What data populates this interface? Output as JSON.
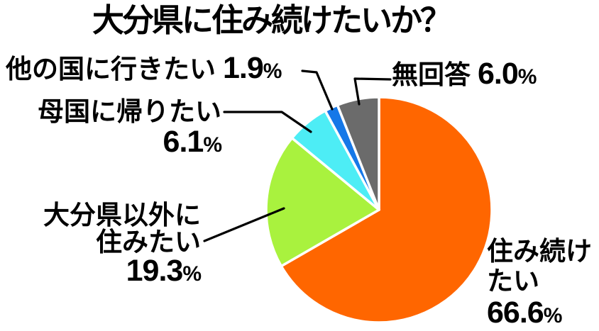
{
  "title": "大分県に住み続けたいか？",
  "background": "#FFFFFF",
  "text_color": "#000000",
  "chart_data": {
    "type": "pie",
    "title": "大分県に住み続けたいか？",
    "start_angle_deg": 0,
    "direction": "clockwise",
    "legend_position": "none",
    "separator_color": "#FFFFFF",
    "segments": [
      {
        "key": "stay",
        "label": "住み続けたい",
        "value": 66.6,
        "display": "66.6%",
        "color": "#FF6600"
      },
      {
        "key": "outside-oita",
        "label": "大分県以外に住みたい",
        "value": 19.3,
        "display": "19.3%",
        "color": "#A9F23E"
      },
      {
        "key": "homeland",
        "label": "母国に帰りたい",
        "value": 6.1,
        "display": "6.1%",
        "color": "#4DEDF5"
      },
      {
        "key": "other-country",
        "label": "他の国に行きたい",
        "value": 1.9,
        "display": "1.9%",
        "color": "#1578E8"
      },
      {
        "key": "no-answer",
        "label": "無回答",
        "value": 6.0,
        "display": "6.0%",
        "color": "#6B6B6B"
      }
    ]
  },
  "labels": {
    "other_country": {
      "text": "他の国に行きたい",
      "value": "1.9",
      "unit": "%"
    },
    "no_answer": {
      "text": "無回答",
      "value": "6.0",
      "unit": "%"
    },
    "homeland": {
      "text": "母国に帰りたい",
      "value": "6.1",
      "unit": "%"
    },
    "outside_oita": {
      "line1": "大分県以外に",
      "line2": "住みたい",
      "value": "19.3",
      "unit": "%"
    },
    "stay": {
      "line1": "住み続け",
      "line2": "たい",
      "value": "66.6",
      "unit": "%"
    }
  }
}
